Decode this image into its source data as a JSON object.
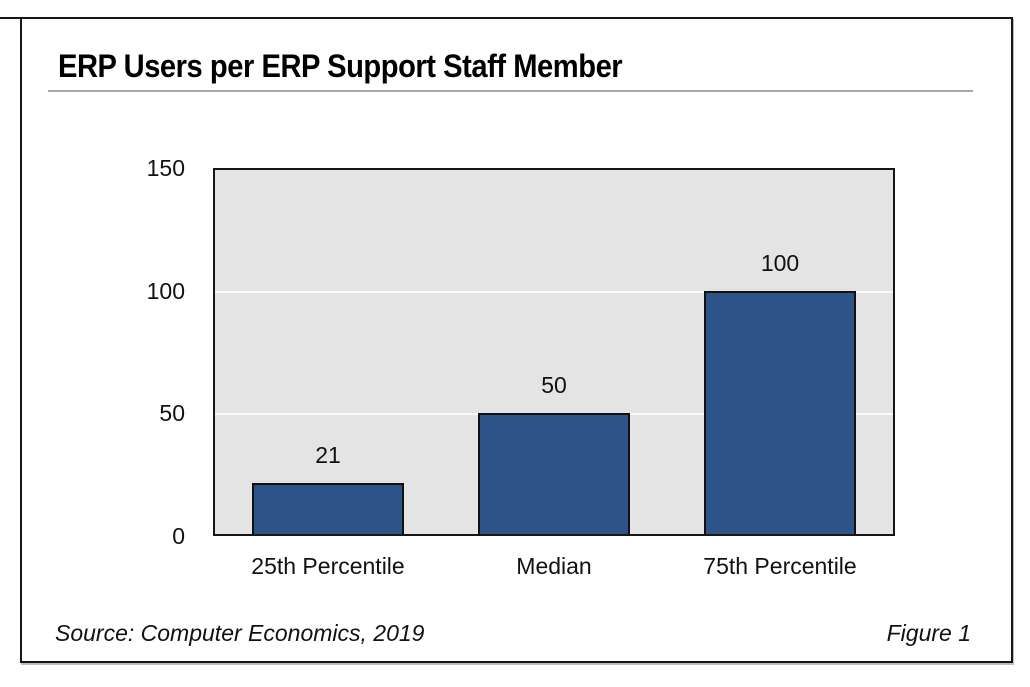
{
  "figure": {
    "title": "ERP Users per ERP Support Staff Member",
    "source": "Source: Computer Economics, 2019",
    "figure_label": "Figure 1"
  },
  "chart_data": {
    "type": "bar",
    "title": "ERP Users per ERP Support Staff Member",
    "categories": [
      "25th Percentile",
      "Median",
      "75th Percentile"
    ],
    "values": [
      21,
      50,
      100
    ],
    "xlabel": "",
    "ylabel": "",
    "ylim": [
      0,
      150
    ],
    "yticks": [
      0,
      50,
      100,
      150
    ],
    "grid": "horizontal gridlines at 50 and 100",
    "legend": "none",
    "colors": {
      "bar_fill": "#2e5389",
      "bar_border": "#111111",
      "plot_background": "#e4e4e4",
      "gridline": "#fafafa",
      "frame": "#161616",
      "title_underline": "#a8a8a8"
    }
  }
}
